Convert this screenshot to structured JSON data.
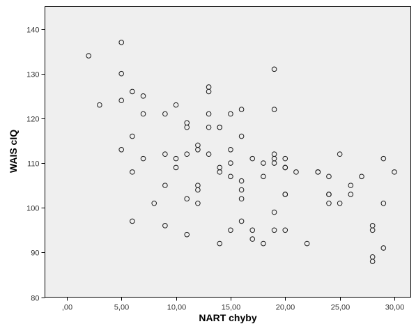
{
  "chart_data": {
    "type": "scatter",
    "xlabel": "NART chyby",
    "ylabel": "WAIS cIQ",
    "xlim": [
      -2,
      31.5
    ],
    "ylim": [
      80,
      145
    ],
    "x_ticks": [
      0,
      5,
      10,
      15,
      20,
      25,
      30
    ],
    "x_tick_labels": [
      ",00",
      "5,00",
      "10,00",
      "15,00",
      "20,00",
      "25,00",
      "30,00"
    ],
    "y_ticks": [
      80,
      90,
      100,
      110,
      120,
      130,
      140
    ],
    "y_tick_labels": [
      "80",
      "90",
      "100",
      "110",
      "120",
      "130",
      "140"
    ],
    "grid": false,
    "legend": "none",
    "colors": {
      "plot_background": "#efefef",
      "marker_edge": "#1a1a1a"
    },
    "points": [
      {
        "x": 2,
        "y": 134
      },
      {
        "x": 3,
        "y": 123
      },
      {
        "x": 5,
        "y": 137
      },
      {
        "x": 5,
        "y": 130
      },
      {
        "x": 5,
        "y": 124
      },
      {
        "x": 5,
        "y": 113
      },
      {
        "x": 6,
        "y": 126
      },
      {
        "x": 6,
        "y": 116
      },
      {
        "x": 6,
        "y": 108
      },
      {
        "x": 6,
        "y": 97
      },
      {
        "x": 7,
        "y": 125
      },
      {
        "x": 7,
        "y": 121
      },
      {
        "x": 7,
        "y": 111
      },
      {
        "x": 8,
        "y": 101
      },
      {
        "x": 9,
        "y": 121
      },
      {
        "x": 9,
        "y": 112
      },
      {
        "x": 9,
        "y": 105
      },
      {
        "x": 9,
        "y": 96
      },
      {
        "x": 10,
        "y": 123
      },
      {
        "x": 10,
        "y": 111
      },
      {
        "x": 10,
        "y": 109
      },
      {
        "x": 11,
        "y": 119
      },
      {
        "x": 11,
        "y": 118
      },
      {
        "x": 11,
        "y": 112
      },
      {
        "x": 11,
        "y": 102
      },
      {
        "x": 11,
        "y": 94
      },
      {
        "x": 12,
        "y": 114
      },
      {
        "x": 12,
        "y": 113
      },
      {
        "x": 12,
        "y": 105
      },
      {
        "x": 12,
        "y": 104
      },
      {
        "x": 12,
        "y": 101
      },
      {
        "x": 13,
        "y": 127
      },
      {
        "x": 13,
        "y": 126
      },
      {
        "x": 13,
        "y": 121
      },
      {
        "x": 13,
        "y": 118
      },
      {
        "x": 13,
        "y": 112
      },
      {
        "x": 14,
        "y": 118
      },
      {
        "x": 14,
        "y": 118
      },
      {
        "x": 14,
        "y": 109
      },
      {
        "x": 14,
        "y": 108
      },
      {
        "x": 14,
        "y": 92
      },
      {
        "x": 15,
        "y": 121
      },
      {
        "x": 15,
        "y": 113
      },
      {
        "x": 15,
        "y": 110
      },
      {
        "x": 15,
        "y": 107
      },
      {
        "x": 15,
        "y": 95
      },
      {
        "x": 16,
        "y": 122
      },
      {
        "x": 16,
        "y": 116
      },
      {
        "x": 16,
        "y": 106
      },
      {
        "x": 16,
        "y": 104
      },
      {
        "x": 16,
        "y": 102
      },
      {
        "x": 16,
        "y": 97
      },
      {
        "x": 17,
        "y": 111
      },
      {
        "x": 17,
        "y": 95
      },
      {
        "x": 17,
        "y": 93
      },
      {
        "x": 18,
        "y": 110
      },
      {
        "x": 18,
        "y": 107
      },
      {
        "x": 18,
        "y": 92
      },
      {
        "x": 19,
        "y": 131
      },
      {
        "x": 19,
        "y": 122
      },
      {
        "x": 19,
        "y": 112
      },
      {
        "x": 19,
        "y": 111
      },
      {
        "x": 19,
        "y": 110
      },
      {
        "x": 19,
        "y": 99
      },
      {
        "x": 19,
        "y": 95
      },
      {
        "x": 20,
        "y": 111
      },
      {
        "x": 20,
        "y": 109
      },
      {
        "x": 20,
        "y": 109
      },
      {
        "x": 20,
        "y": 103
      },
      {
        "x": 20,
        "y": 103
      },
      {
        "x": 20,
        "y": 95
      },
      {
        "x": 21,
        "y": 108
      },
      {
        "x": 22,
        "y": 92
      },
      {
        "x": 23,
        "y": 108
      },
      {
        "x": 23,
        "y": 108
      },
      {
        "x": 24,
        "y": 107
      },
      {
        "x": 24,
        "y": 103
      },
      {
        "x": 24,
        "y": 103
      },
      {
        "x": 24,
        "y": 101
      },
      {
        "x": 25,
        "y": 112
      },
      {
        "x": 25,
        "y": 101
      },
      {
        "x": 26,
        "y": 105
      },
      {
        "x": 26,
        "y": 103
      },
      {
        "x": 27,
        "y": 107
      },
      {
        "x": 28,
        "y": 96
      },
      {
        "x": 28,
        "y": 95
      },
      {
        "x": 28,
        "y": 89
      },
      {
        "x": 28,
        "y": 88
      },
      {
        "x": 29,
        "y": 111
      },
      {
        "x": 29,
        "y": 101
      },
      {
        "x": 29,
        "y": 91
      },
      {
        "x": 30,
        "y": 108
      }
    ]
  }
}
